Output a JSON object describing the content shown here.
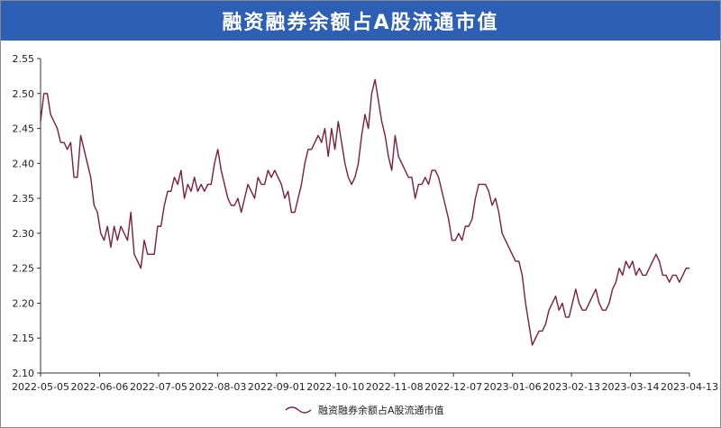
{
  "title": "融资融券余额占A股流通市值",
  "colors": {
    "title_bg": "#2d5fb4",
    "title_text": "#ffffff",
    "series": "#7b1f3a",
    "axis": "#333333"
  },
  "chart_data": {
    "type": "line",
    "title": "融资融券余额占A股流通市值",
    "xlabel": "",
    "ylabel": "",
    "ylim": [
      2.1,
      2.55
    ],
    "yticks": [
      "2.10",
      "2.15",
      "2.20",
      "2.25",
      "2.30",
      "2.35",
      "2.40",
      "2.45",
      "2.50",
      "2.55"
    ],
    "xticks": [
      "2022-05-05",
      "2022-06-06",
      "2022-07-05",
      "2022-08-03",
      "2022-09-01",
      "2022-10-10",
      "2022-11-08",
      "2022-12-07",
      "2023-01-06",
      "2023-02-13",
      "2023-03-14",
      "2023-04-13"
    ],
    "grid": false,
    "legend": "bottom-center",
    "series": [
      {
        "name": "融资融券余额占A股流通市值",
        "values": [
          2.46,
          2.5,
          2.5,
          2.47,
          2.46,
          2.45,
          2.43,
          2.43,
          2.42,
          2.43,
          2.38,
          2.38,
          2.44,
          2.42,
          2.4,
          2.38,
          2.34,
          2.33,
          2.3,
          2.29,
          2.31,
          2.28,
          2.31,
          2.29,
          2.31,
          2.3,
          2.29,
          2.33,
          2.27,
          2.26,
          2.25,
          2.29,
          2.27,
          2.27,
          2.27,
          2.31,
          2.31,
          2.34,
          2.36,
          2.36,
          2.38,
          2.37,
          2.39,
          2.35,
          2.37,
          2.36,
          2.38,
          2.36,
          2.37,
          2.36,
          2.37,
          2.37,
          2.4,
          2.42,
          2.39,
          2.37,
          2.35,
          2.34,
          2.34,
          2.35,
          2.33,
          2.35,
          2.37,
          2.36,
          2.35,
          2.38,
          2.37,
          2.37,
          2.39,
          2.38,
          2.39,
          2.38,
          2.37,
          2.35,
          2.36,
          2.33,
          2.33,
          2.35,
          2.37,
          2.4,
          2.42,
          2.42,
          2.43,
          2.44,
          2.43,
          2.45,
          2.41,
          2.45,
          2.42,
          2.46,
          2.43,
          2.4,
          2.38,
          2.37,
          2.38,
          2.4,
          2.44,
          2.47,
          2.45,
          2.5,
          2.52,
          2.49,
          2.46,
          2.44,
          2.41,
          2.39,
          2.44,
          2.41,
          2.4,
          2.39,
          2.38,
          2.38,
          2.35,
          2.37,
          2.37,
          2.38,
          2.37,
          2.39,
          2.39,
          2.38,
          2.36,
          2.34,
          2.32,
          2.29,
          2.29,
          2.3,
          2.29,
          2.31,
          2.31,
          2.32,
          2.35,
          2.37,
          2.37,
          2.37,
          2.36,
          2.34,
          2.35,
          2.33,
          2.3,
          2.29,
          2.28,
          2.27,
          2.26,
          2.26,
          2.24,
          2.2,
          2.17,
          2.14,
          2.15,
          2.16,
          2.16,
          2.17,
          2.19,
          2.2,
          2.21,
          2.19,
          2.2,
          2.18,
          2.18,
          2.2,
          2.22,
          2.2,
          2.19,
          2.19,
          2.2,
          2.21,
          2.22,
          2.2,
          2.19,
          2.19,
          2.2,
          2.22,
          2.23,
          2.25,
          2.24,
          2.26,
          2.25,
          2.26,
          2.24,
          2.25,
          2.24,
          2.24,
          2.25,
          2.26,
          2.27,
          2.26,
          2.24,
          2.24,
          2.23,
          2.24,
          2.24,
          2.23,
          2.24,
          2.25,
          2.25
        ]
      }
    ]
  }
}
